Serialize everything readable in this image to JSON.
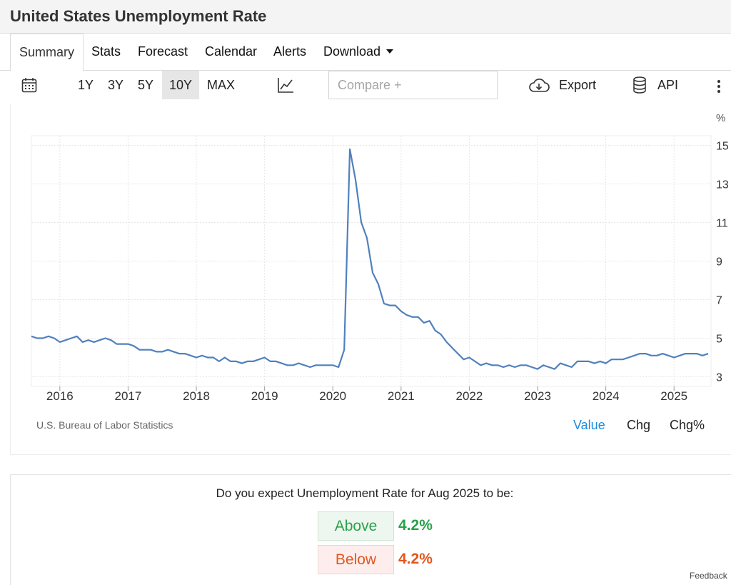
{
  "page": {
    "title": "United States Unemployment Rate"
  },
  "tabs": [
    {
      "label": "Summary",
      "active": true
    },
    {
      "label": "Stats"
    },
    {
      "label": "Forecast"
    },
    {
      "label": "Calendar"
    },
    {
      "label": "Alerts"
    },
    {
      "label": "Download",
      "icon": "caret-down-icon"
    }
  ],
  "toolbar": {
    "ranges": [
      "1Y",
      "3Y",
      "5Y",
      "10Y",
      "MAX"
    ],
    "active_range": "10Y",
    "compare_placeholder": "Compare +",
    "export_label": "Export",
    "api_label": "API",
    "icons": [
      "calendar-icon",
      "line-chart-icon",
      "cloud-download-icon",
      "database-icon",
      "more-vertical-icon"
    ]
  },
  "chart": {
    "source": "U.S. Bureau of Labor Statistics",
    "views": [
      "Value",
      "Chg",
      "Chg%"
    ],
    "active_view": "Value",
    "accent_color": "#1a8ce0",
    "line_color": "#4f81bd"
  },
  "chart_data": {
    "type": "line",
    "title": "",
    "xlabel": "",
    "ylabel": "%",
    "grid": true,
    "ylim": [
      2.5,
      15.5
    ],
    "y_ticks": [
      "15",
      "13",
      "11",
      "9",
      "7",
      "5",
      "3"
    ],
    "x_ticks": [
      "2016",
      "2017",
      "2018",
      "2019",
      "2020",
      "2021",
      "2022",
      "2023",
      "2024",
      "2025"
    ],
    "series": [
      {
        "x": [
          "2015-08",
          "2015-09",
          "2015-10",
          "2015-11",
          "2015-12",
          "2016-01",
          "2016-02",
          "2016-03",
          "2016-04",
          "2016-05",
          "2016-06",
          "2016-07",
          "2016-08",
          "2016-09",
          "2016-10",
          "2016-11",
          "2016-12",
          "2017-01",
          "2017-02",
          "2017-03",
          "2017-04",
          "2017-05",
          "2017-06",
          "2017-07",
          "2017-08",
          "2017-09",
          "2017-10",
          "2017-11",
          "2017-12",
          "2018-01",
          "2018-02",
          "2018-03",
          "2018-04",
          "2018-05",
          "2018-06",
          "2018-07",
          "2018-08",
          "2018-09",
          "2018-10",
          "2018-11",
          "2018-12",
          "2019-01",
          "2019-02",
          "2019-03",
          "2019-04",
          "2019-05",
          "2019-06",
          "2019-07",
          "2019-08",
          "2019-09",
          "2019-10",
          "2019-11",
          "2019-12",
          "2020-01",
          "2020-02",
          "2020-03",
          "2020-04",
          "2020-05",
          "2020-06",
          "2020-07",
          "2020-08",
          "2020-09",
          "2020-10",
          "2020-11",
          "2020-12",
          "2021-01",
          "2021-02",
          "2021-03",
          "2021-04",
          "2021-05",
          "2021-06",
          "2021-07",
          "2021-08",
          "2021-09",
          "2021-10",
          "2021-11",
          "2021-12",
          "2022-01",
          "2022-02",
          "2022-03",
          "2022-04",
          "2022-05",
          "2022-06",
          "2022-07",
          "2022-08",
          "2022-09",
          "2022-10",
          "2022-11",
          "2022-12",
          "2023-01",
          "2023-02",
          "2023-03",
          "2023-04",
          "2023-05",
          "2023-06",
          "2023-07",
          "2023-08",
          "2023-09",
          "2023-10",
          "2023-11",
          "2023-12",
          "2024-01",
          "2024-02",
          "2024-03",
          "2024-04",
          "2024-05",
          "2024-06",
          "2024-07",
          "2024-08",
          "2024-09",
          "2024-10",
          "2024-11",
          "2024-12",
          "2025-01",
          "2025-02",
          "2025-03",
          "2025-04",
          "2025-05",
          "2025-06",
          "2025-07"
        ],
        "values": [
          5.1,
          5.0,
          5.0,
          5.1,
          5.0,
          4.8,
          4.9,
          5.0,
          5.1,
          4.8,
          4.9,
          4.8,
          4.9,
          5.0,
          4.9,
          4.7,
          4.7,
          4.7,
          4.6,
          4.4,
          4.4,
          4.4,
          4.3,
          4.3,
          4.4,
          4.3,
          4.2,
          4.2,
          4.1,
          4.0,
          4.1,
          4.0,
          4.0,
          3.8,
          4.0,
          3.8,
          3.8,
          3.7,
          3.8,
          3.8,
          3.9,
          4.0,
          3.8,
          3.8,
          3.7,
          3.6,
          3.6,
          3.7,
          3.6,
          3.5,
          3.6,
          3.6,
          3.6,
          3.6,
          3.5,
          4.4,
          14.8,
          13.2,
          11.0,
          10.2,
          8.4,
          7.8,
          6.8,
          6.7,
          6.7,
          6.4,
          6.2,
          6.1,
          6.1,
          5.8,
          5.9,
          5.4,
          5.2,
          4.8,
          4.5,
          4.2,
          3.9,
          4.0,
          3.8,
          3.6,
          3.7,
          3.6,
          3.6,
          3.5,
          3.6,
          3.5,
          3.6,
          3.6,
          3.5,
          3.4,
          3.6,
          3.5,
          3.4,
          3.7,
          3.6,
          3.5,
          3.8,
          3.8,
          3.8,
          3.7,
          3.8,
          3.7,
          3.9,
          3.9,
          3.9,
          4.0,
          4.1,
          4.2,
          4.2,
          4.1,
          4.1,
          4.2,
          4.1,
          4.0,
          4.1,
          4.2,
          4.2,
          4.2,
          4.1,
          4.2
        ]
      }
    ]
  },
  "poll": {
    "question": "Do you expect Unemployment Rate for Aug 2025 to be:",
    "above_label": "Above",
    "above_value": "4.2%",
    "below_label": "Below",
    "below_value": "4.2%",
    "above_color": "#2aa14a",
    "below_color": "#e2571d"
  },
  "footer": {
    "feedback": "Feedback"
  }
}
